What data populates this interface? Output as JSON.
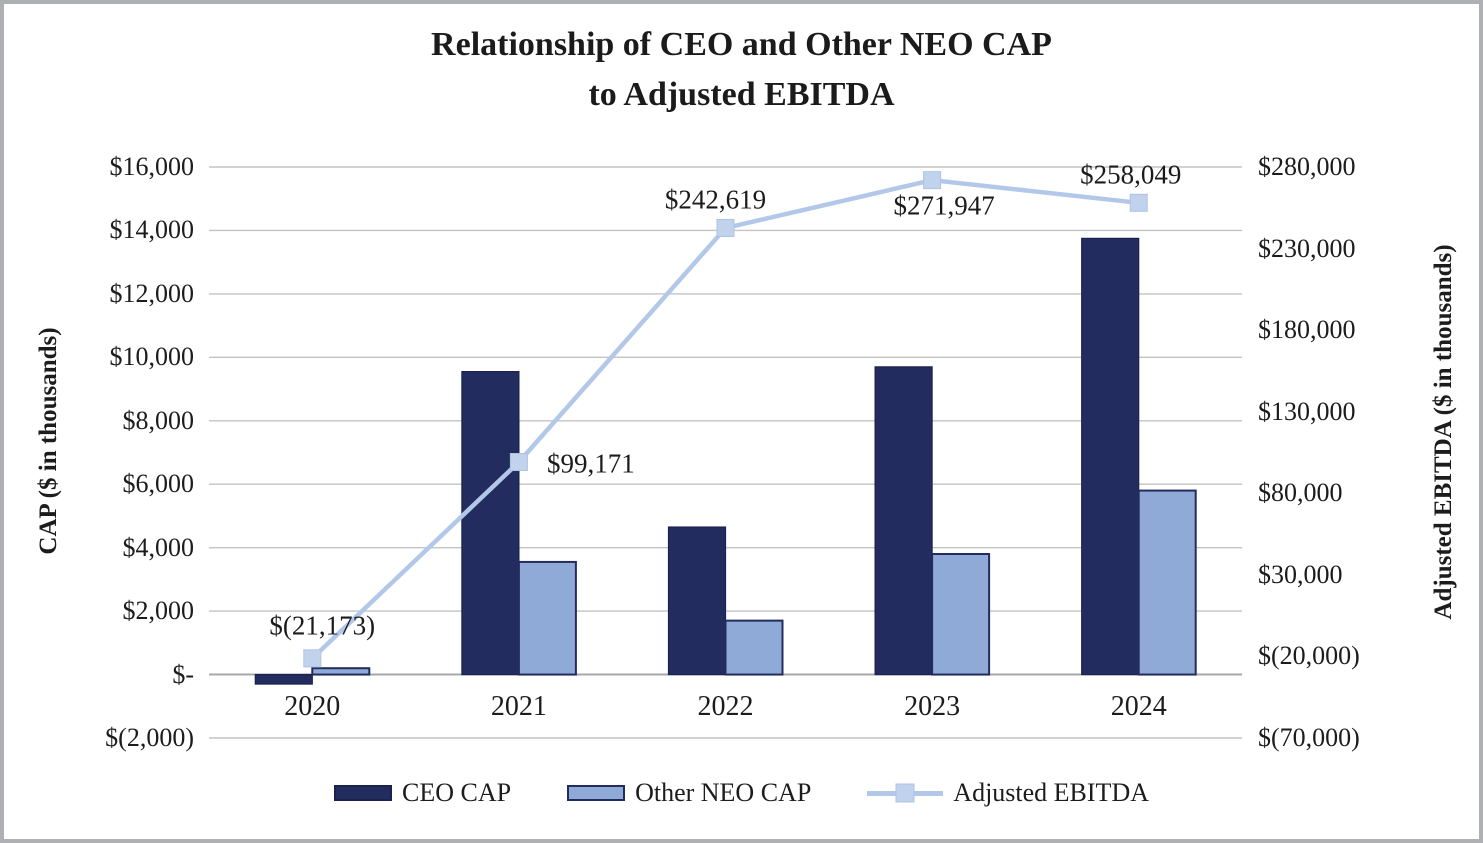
{
  "title": {
    "line1": "Relationship of CEO and Other NEO CAP",
    "line2": "to Adjusted EBITDA"
  },
  "legend": [
    {
      "label": "CEO CAP"
    },
    {
      "label": "Other NEO CAP"
    },
    {
      "label": "Adjusted EBITDA"
    }
  ],
  "chart_data": {
    "type": "combo",
    "categories": [
      "2020",
      "2021",
      "2022",
      "2023",
      "2024"
    ],
    "series": [
      {
        "name": "CEO CAP",
        "type": "bar",
        "axis": "left",
        "values": [
          -300,
          9550,
          4650,
          9700,
          13750
        ],
        "color": "#232c5e",
        "border": "#1a2350"
      },
      {
        "name": "Other NEO CAP",
        "type": "bar",
        "axis": "left",
        "values": [
          200,
          3550,
          1700,
          3800,
          5800
        ],
        "color": "#90aad8",
        "border": "#232c5e"
      },
      {
        "name": "Adjusted EBITDA",
        "type": "line",
        "axis": "right",
        "values": [
          -21173,
          99171,
          242619,
          271947,
          258049
        ],
        "labels": [
          "$(21,173)",
          "$99,171",
          "$242,619",
          "$271,947",
          "$258,049"
        ],
        "color": "#b3c8e8",
        "marker_fill": "#c1d2ec",
        "marker_stroke": "#adc3e4"
      }
    ],
    "left_axis": {
      "title": "CAP ($ in thousands)",
      "min": -2000,
      "max": 16000,
      "step": 2000,
      "ticks": [
        "$16,000",
        "$14,000",
        "$12,000",
        "$10,000",
        "$8,000",
        "$6,000",
        "$4,000",
        "$2,000",
        "$-",
        "$(2,000)"
      ]
    },
    "right_axis": {
      "title": "Adjusted EBITDA ($ in thousands)",
      "min": -70000,
      "max": 280000,
      "step": 50000,
      "ticks": [
        "$280,000",
        "$230,000",
        "$180,000",
        "$130,000",
        "$80,000",
        "$30,000",
        "$(20,000)",
        "$(70,000)"
      ]
    },
    "grid": {
      "line_color": "#c3c3c3",
      "zero_line_color": "#a8a8a8",
      "grid_on": true
    },
    "legend_position": "bottom"
  }
}
